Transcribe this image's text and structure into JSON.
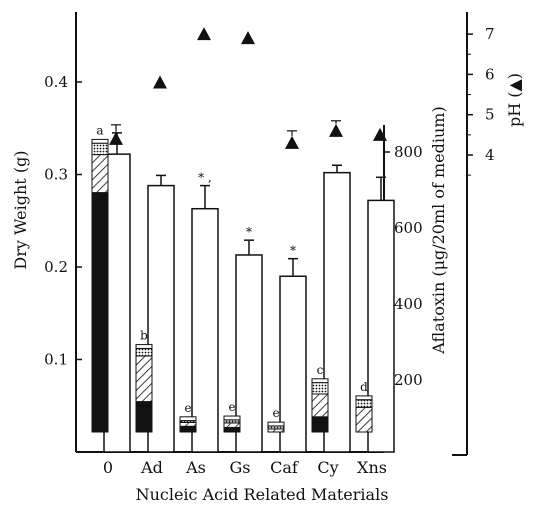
{
  "chart_data": {
    "type": "bar",
    "xlabel": "Nucleic Acid Related Materials",
    "ylabel_left": "Dry Weight (g)",
    "ylabel_right": "Aflatoxin (μg/20ml of medium)",
    "ylabel_ph": "pH (▲)",
    "categories": [
      "0",
      "Ad",
      "As",
      "Gs",
      "Caf",
      "Cy",
      "Xns"
    ],
    "dry_weight": {
      "ylim": [
        0,
        0.44
      ],
      "yticks": [
        "0.1",
        "0.2",
        "0.3",
        "0.4"
      ],
      "values": [
        0.322,
        0.288,
        0.263,
        0.213,
        0.19,
        0.302,
        0.272
      ],
      "errors": [
        0.023,
        0.011,
        0.025,
        0.016,
        0.019,
        0.008,
        0.025
      ]
    },
    "aflatoxin": {
      "yticks": [
        "200",
        "400",
        "600",
        "800"
      ],
      "segments": [
        "black",
        "hatched",
        "dotted",
        "white"
      ],
      "stacks": [
        [
          630,
          100,
          30,
          10
        ],
        [
          80,
          120,
          20,
          10
        ],
        [
          15,
          10,
          5,
          10
        ],
        [
          12,
          12,
          8,
          10
        ],
        [
          0,
          8,
          8,
          10
        ],
        [
          40,
          60,
          30,
          10
        ],
        [
          0,
          65,
          20,
          10
        ]
      ],
      "letters": [
        "a",
        "b",
        "e",
        "e",
        "e",
        "c",
        "d"
      ]
    },
    "significance_marks": [
      "",
      "",
      "*  ,",
      "*",
      "*",
      "",
      ""
    ],
    "ph": {
      "yticks": [
        "4",
        "5",
        "6",
        "7"
      ],
      "values": [
        4.4,
        5.8,
        7.0,
        6.9,
        4.3,
        4.6,
        4.5
      ],
      "errors": [
        0.2,
        0,
        0,
        0,
        0.15,
        0.1,
        0
      ]
    }
  }
}
